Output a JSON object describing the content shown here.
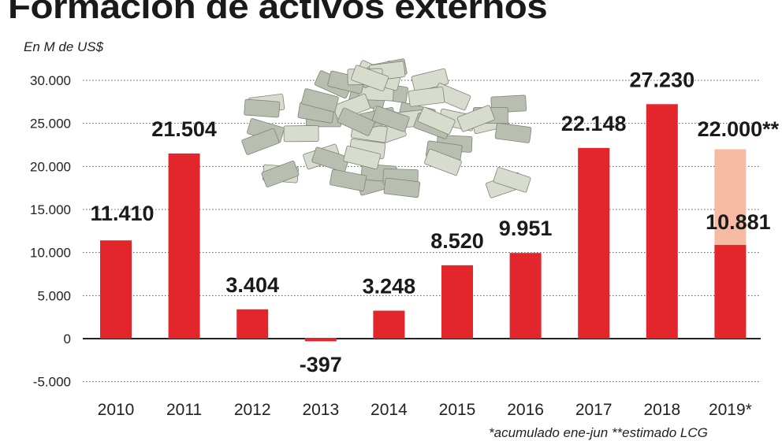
{
  "title": "Formación de activos externos",
  "unit_label": "En M de US$",
  "footnote": "*acumulado ene-jun **estimado LCG",
  "chart_data": {
    "type": "bar",
    "title": "Formación de activos externos",
    "ylabel": "En M de US$",
    "xlabel": "",
    "ylim": [
      -5000,
      30000
    ],
    "yticks": [
      -5000,
      0,
      5000,
      10000,
      15000,
      20000,
      25000,
      30000
    ],
    "ytick_labels": [
      "-5.000",
      "0",
      "5.000",
      "10.000",
      "15.000",
      "20.000",
      "25.000",
      "30.000"
    ],
    "grid": true,
    "categories": [
      "2010",
      "2011",
      "2012",
      "2013",
      "2014",
      "2015",
      "2016",
      "2017",
      "2018",
      "2019*"
    ],
    "values": [
      11410,
      21504,
      3404,
      -397,
      3248,
      8520,
      9951,
      22148,
      27230,
      10881
    ],
    "value_labels": [
      "11.410",
      "21.504",
      "3.404",
      "-397",
      "3.248",
      "8.520",
      "9.951",
      "22.148",
      "27.230",
      "10.881"
    ],
    "estimate": {
      "category": "2019*",
      "value": 22000,
      "label": "22.000**"
    },
    "colors": {
      "bar": "#e3262b",
      "estimate": "#f7bba3",
      "grid": "#555555"
    },
    "decoration": "money-pile-image"
  }
}
